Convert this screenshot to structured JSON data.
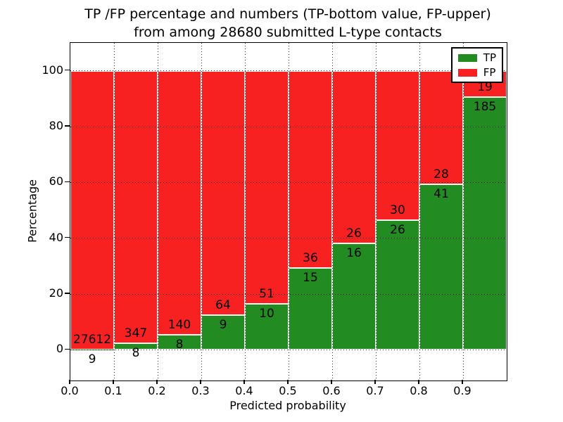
{
  "chart_data": {
    "type": "bar",
    "stacked": true,
    "title_line1": "TP /FP percentage and numbers (TP-bottom value, FP-upper)",
    "title_line2": "from among 28680 submitted L-type contacts",
    "total_submitted": 28680,
    "xlabel": "Predicted probability",
    "ylabel": "Percentage",
    "bins": [
      0.0,
      0.1,
      0.2,
      0.3,
      0.4,
      0.5,
      0.6,
      0.7,
      0.8,
      0.9
    ],
    "bin_width": 0.1,
    "x_tick_labels": [
      "0.0",
      "0.1",
      "0.2",
      "0.3",
      "0.4",
      "0.5",
      "0.6",
      "0.7",
      "0.8",
      "0.9"
    ],
    "y_ticks": [
      0,
      20,
      40,
      60,
      80,
      100
    ],
    "xlim": [
      0,
      1
    ],
    "ylim": [
      -11,
      110
    ],
    "grid_style": "dotted",
    "legend_position": "upper-right",
    "series": [
      {
        "name": "TP",
        "color": "#228b22",
        "counts": [
          9,
          8,
          8,
          9,
          10,
          15,
          16,
          26,
          41,
          185
        ]
      },
      {
        "name": "FP",
        "color": "#f82121",
        "counts": [
          27612,
          347,
          140,
          64,
          51,
          36,
          26,
          30,
          28,
          19
        ]
      }
    ],
    "tp_percent": [
      0.03,
      2.25,
      5.41,
      12.33,
      16.39,
      29.41,
      38.1,
      46.43,
      59.42,
      90.69
    ],
    "colors": {
      "tp": "#228b22",
      "fp": "#f82121",
      "grid": "#000000",
      "background": "#ffffff"
    }
  }
}
